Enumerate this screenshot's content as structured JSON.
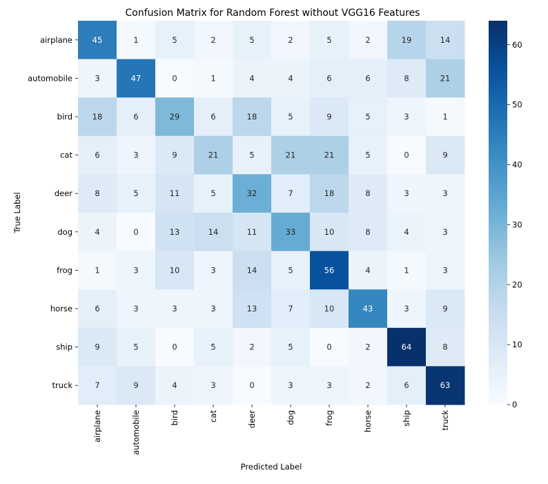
{
  "chart_data": {
    "type": "heatmap",
    "title": "Confusion Matrix for Random Forest without VGG16 Features",
    "xlabel": "Predicted Label",
    "ylabel": "True Label",
    "x_categories": [
      "airplane",
      "automobile",
      "bird",
      "cat",
      "deer",
      "dog",
      "frog",
      "horse",
      "ship",
      "truck"
    ],
    "y_categories": [
      "airplane",
      "automobile",
      "bird",
      "cat",
      "deer",
      "dog",
      "frog",
      "horse",
      "ship",
      "truck"
    ],
    "values": [
      [
        45,
        1,
        5,
        2,
        5,
        2,
        5,
        2,
        19,
        14
      ],
      [
        3,
        47,
        0,
        1,
        4,
        4,
        6,
        6,
        8,
        21
      ],
      [
        18,
        6,
        29,
        6,
        18,
        5,
        9,
        5,
        3,
        1
      ],
      [
        6,
        3,
        9,
        21,
        5,
        21,
        21,
        5,
        0,
        9
      ],
      [
        8,
        5,
        11,
        5,
        32,
        7,
        18,
        8,
        3,
        3
      ],
      [
        4,
        0,
        13,
        14,
        11,
        33,
        10,
        8,
        4,
        3
      ],
      [
        1,
        3,
        10,
        3,
        14,
        5,
        56,
        4,
        1,
        3
      ],
      [
        6,
        3,
        3,
        3,
        13,
        7,
        10,
        43,
        3,
        9
      ],
      [
        9,
        5,
        0,
        5,
        2,
        5,
        0,
        2,
        64,
        8
      ],
      [
        7,
        9,
        4,
        3,
        0,
        3,
        3,
        2,
        6,
        63
      ]
    ],
    "colormap": "Blues",
    "color_range": [
      0,
      64
    ],
    "colorbar_ticks": [
      0,
      10,
      20,
      30,
      40,
      50,
      60
    ],
    "annotations": true
  }
}
